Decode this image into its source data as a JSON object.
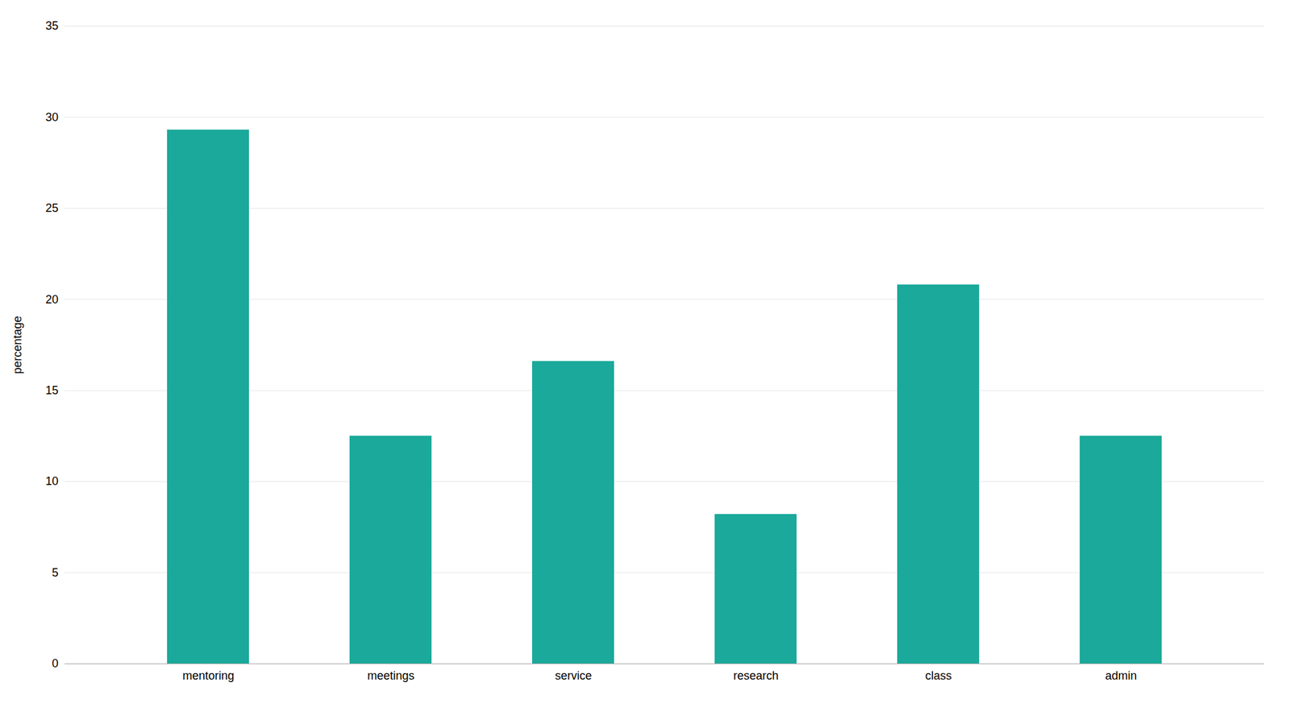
{
  "chart_data": {
    "type": "bar",
    "ylabel": "percentage",
    "categories": [
      "mentoring",
      "meetings",
      "service",
      "research",
      "class",
      "admin"
    ],
    "values": [
      29.3,
      12.5,
      16.6,
      8.2,
      20.8,
      12.5
    ],
    "color": "#1aA99A",
    "ylim": [
      0,
      35
    ],
    "yticks": [
      0,
      5,
      10,
      15,
      20,
      25,
      30,
      35
    ],
    "grid": true
  }
}
